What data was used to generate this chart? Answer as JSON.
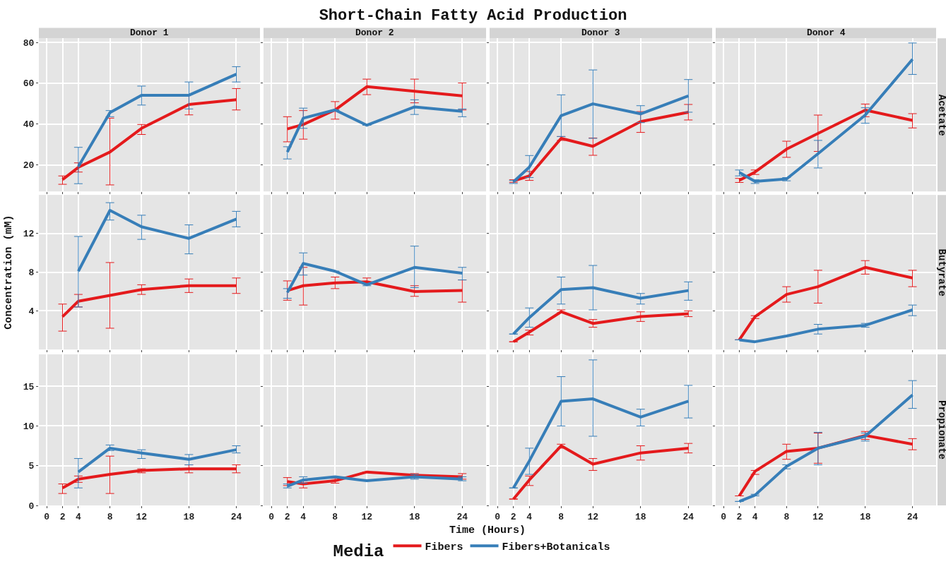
{
  "chart_data": [
    {
      "type": "line",
      "subtitle": "Donor 1",
      "legend": "bottom",
      "legend_title": "Media",
      "x": [
        2,
        4,
        8,
        12,
        18,
        24
      ],
      "xlim": [
        -1,
        27
      ],
      "xticks": [
        0,
        2,
        4,
        8,
        12,
        18,
        24
      ],
      "ylim": [
        7,
        82
      ],
      "yticks": [
        20,
        40,
        60,
        80
      ],
      "grid": true,
      "tick_labels": "y",
      "series": [
        {
          "name": "Fibers",
          "color": "#e41a1c",
          "values": [
            12.8,
            18.8,
            26.3,
            37.9,
            49.6,
            51.9
          ],
          "errors": [
            [
              10.5,
              14.6
            ],
            [
              16.5,
              21.0
            ],
            [
              10.2,
              42.9
            ],
            [
              34.9,
              39.8
            ],
            [
              44.5,
              54.6
            ],
            [
              46.9,
              57.4
            ]
          ]
        },
        {
          "name": "Fibers+Botanicals",
          "color": "#377eb8",
          "values": [
            null,
            19.2,
            45.6,
            54.1,
            54.1,
            64.4
          ],
          "errors": [
            null,
            [
              10.8,
              28.6
            ],
            [
              43.6,
              46.6
            ],
            [
              49.3,
              58.6
            ],
            [
              47.4,
              60.6
            ],
            [
              60.6,
              68.1
            ]
          ]
        }
      ]
    },
    {
      "type": "line",
      "title": "Short-Chain Fatty Acid Production",
      "subtitle": "Donor 2",
      "x": [
        2,
        4,
        8,
        12,
        18,
        24
      ],
      "xlim": [
        -1,
        27
      ],
      "xticks": [
        0,
        2,
        4,
        8,
        12,
        18,
        24
      ],
      "ylim": [
        7,
        82
      ],
      "yticks": [
        20,
        40,
        60,
        80
      ],
      "grid": true,
      "tick_labels": false,
      "series": [
        {
          "color": "#e41a1c",
          "values": [
            37.6,
            39.8,
            46.9,
            58.3,
            56.1,
            53.8
          ],
          "errors": [
            [
              31.3,
              43.6
            ],
            [
              32.6,
              46.6
            ],
            [
              42.4,
              51.0
            ],
            [
              54.4,
              62.0
            ],
            [
              50.4,
              62.0
            ],
            [
              46.9,
              60.1
            ]
          ]
        },
        {
          "color": "#377eb8",
          "values": [
            26.3,
            42.9,
            46.9,
            39.4,
            48.4,
            46.2
          ],
          "errors": [
            [
              22.9,
              28.9
            ],
            [
              37.9,
              47.8
            ],
            null,
            null,
            [
              44.7,
              51.9
            ],
            [
              43.6,
              47.4
            ]
          ]
        }
      ]
    },
    {
      "type": "line",
      "subtitle": "Donor 3",
      "x": [
        2,
        4,
        8,
        12,
        18,
        24
      ],
      "xlim": [
        -1,
        27
      ],
      "xticks": [
        0,
        2,
        4,
        8,
        12,
        18,
        24
      ],
      "ylim": [
        7,
        82
      ],
      "yticks": [
        20,
        40,
        60,
        80
      ],
      "grid": true,
      "tick_labels": false,
      "series": [
        {
          "color": "#e41a1c",
          "values": [
            12.1,
            14.6,
            33.0,
            29.1,
            41.2,
            45.8
          ],
          "errors": [
            [
              11.5,
              12.7
            ],
            [
              12.4,
              16.8
            ],
            [
              32.0,
              33.9
            ],
            [
              24.7,
              33.2
            ],
            [
              35.9,
              46.1
            ],
            [
              42.0,
              49.6
            ]
          ]
        },
        {
          "color": "#377eb8",
          "values": [
            11.7,
            18.9,
            44.1,
            49.9,
            45.0,
            53.8
          ],
          "errors": [
            [
              10.9,
              12.4
            ],
            [
              13.8,
              24.6
            ],
            [
              33.9,
              54.3
            ],
            [
              33.0,
              66.5
            ],
            [
              40.7,
              49.0
            ],
            [
              45.8,
              61.8
            ]
          ]
        }
      ]
    },
    {
      "type": "line",
      "subtitle": "Donor 4",
      "annotations": [
        "Acetate"
      ],
      "x": [
        2,
        4,
        8,
        12,
        18,
        24
      ],
      "xlim": [
        -1,
        27
      ],
      "xticks": [
        0,
        2,
        4,
        8,
        12,
        18,
        24
      ],
      "ylim": [
        7,
        82
      ],
      "yticks": [
        20,
        40,
        60,
        80
      ],
      "grid": true,
      "tick_labels": false,
      "series": [
        {
          "color": "#e41a1c",
          "values": [
            12.4,
            16.5,
            27.7,
            35.4,
            46.8,
            41.8
          ],
          "errors": [
            [
              11.4,
              13.4
            ],
            [
              15.3,
              17.5
            ],
            [
              23.7,
              31.6
            ],
            [
              26.6,
              44.4
            ],
            [
              43.6,
              49.8
            ],
            [
              38.1,
              45.1
            ]
          ]
        },
        {
          "color": "#377eb8",
          "values": [
            16.3,
            11.9,
            13.1,
            25.5,
            44.4,
            71.7
          ],
          "errors": [
            [
              14.6,
              17.5
            ],
            [
              10.9,
              12.7
            ],
            [
              12.2,
              13.8
            ],
            [
              18.5,
              32.0
            ],
            [
              40.4,
              48.0
            ],
            [
              64.3,
              79.7
            ]
          ]
        }
      ]
    },
    {
      "type": "line",
      "ylabel": "Concentration (mM)",
      "x": [
        2,
        4,
        8,
        12,
        18,
        24
      ],
      "xlim": [
        -1,
        27
      ],
      "xticks": [
        0,
        2,
        4,
        8,
        12,
        18,
        24
      ],
      "ylim": [
        0,
        16
      ],
      "yticks": [
        4,
        8,
        12
      ],
      "grid": true,
      "tick_labels": "y",
      "series": [
        {
          "color": "#e41a1c",
          "values": [
            3.4,
            5.0,
            5.6,
            6.2,
            6.6,
            6.6
          ],
          "errors": [
            [
              1.9,
              4.7
            ],
            [
              4.4,
              5.7
            ],
            [
              2.2,
              9.0
            ],
            [
              5.7,
              6.7
            ],
            [
              5.9,
              7.3
            ],
            [
              5.8,
              7.4
            ]
          ]
        },
        {
          "color": "#377eb8",
          "values": [
            null,
            8.1,
            14.4,
            12.7,
            11.5,
            13.5
          ],
          "errors": [
            null,
            [
              4.4,
              11.7
            ],
            [
              13.4,
              15.2
            ],
            [
              11.4,
              13.9
            ],
            [
              9.9,
              12.9
            ],
            [
              12.7,
              14.3
            ]
          ]
        }
      ]
    },
    {
      "type": "line",
      "x": [
        2,
        4,
        8,
        12,
        18,
        24
      ],
      "xlim": [
        -1,
        27
      ],
      "xticks": [
        0,
        2,
        4,
        8,
        12,
        18,
        24
      ],
      "ylim": [
        0,
        16
      ],
      "yticks": [
        4,
        8,
        12
      ],
      "grid": true,
      "tick_labels": false,
      "series": [
        {
          "color": "#e41a1c",
          "values": [
            6.1,
            6.6,
            6.9,
            7.0,
            6.0,
            6.1
          ],
          "errors": [
            [
              5.1,
              7.1
            ],
            [
              4.6,
              8.5
            ],
            [
              6.3,
              7.5
            ],
            [
              6.8,
              7.4
            ],
            [
              5.5,
              6.6
            ],
            [
              4.9,
              7.2
            ]
          ]
        },
        {
          "color": "#377eb8",
          "values": [
            5.9,
            8.9,
            8.1,
            6.7,
            8.5,
            7.9
          ],
          "errors": [
            [
              5.3,
              6.3
            ],
            [
              7.7,
              10.0
            ],
            null,
            [
              6.6,
              6.8
            ],
            [
              6.4,
              10.7
            ],
            [
              7.2,
              8.5
            ]
          ]
        }
      ]
    },
    {
      "type": "line",
      "x": [
        2,
        4,
        8,
        12,
        18,
        24
      ],
      "xlim": [
        -1,
        27
      ],
      "xticks": [
        0,
        2,
        4,
        8,
        12,
        18,
        24
      ],
      "ylim": [
        0,
        16
      ],
      "yticks": [
        4,
        8,
        12
      ],
      "grid": true,
      "tick_labels": false,
      "series": [
        {
          "color": "#e41a1c",
          "values": [
            0.8,
            1.8,
            3.9,
            2.7,
            3.4,
            3.7
          ],
          "errors": [
            null,
            [
              1.5,
              2.0
            ],
            [
              3.8,
              4.1
            ],
            [
              2.3,
              3.1
            ],
            [
              2.9,
              3.9
            ],
            [
              3.4,
              4.0
            ]
          ]
        },
        {
          "color": "#377eb8",
          "values": [
            1.6,
            3.3,
            6.2,
            6.4,
            5.3,
            6.1
          ],
          "errors": [
            null,
            [
              2.3,
              4.3
            ],
            [
              4.7,
              7.5
            ],
            [
              4.1,
              8.7
            ],
            [
              4.7,
              5.8
            ],
            [
              5.1,
              7.0
            ]
          ]
        }
      ]
    },
    {
      "type": "line",
      "annotations": [
        "Butyrate"
      ],
      "x": [
        2,
        4,
        8,
        12,
        18,
        24
      ],
      "xlim": [
        -1,
        27
      ],
      "xticks": [
        0,
        2,
        4,
        8,
        12,
        18,
        24
      ],
      "ylim": [
        0,
        16
      ],
      "yticks": [
        4,
        8,
        12
      ],
      "grid": true,
      "tick_labels": false,
      "series": [
        {
          "color": "#e41a1c",
          "values": [
            1.0,
            3.4,
            5.7,
            6.5,
            8.5,
            7.4
          ],
          "errors": [
            null,
            [
              3.2,
              3.5
            ],
            [
              4.9,
              6.5
            ],
            [
              4.8,
              8.2
            ],
            [
              7.8,
              9.2
            ],
            [
              6.5,
              8.2
            ]
          ]
        },
        {
          "color": "#377eb8",
          "values": [
            1.0,
            0.8,
            1.4,
            2.1,
            2.5,
            4.1
          ],
          "errors": [
            null,
            null,
            null,
            [
              1.6,
              2.6
            ],
            [
              2.3,
              2.7
            ],
            [
              3.5,
              4.6
            ]
          ]
        }
      ]
    },
    {
      "type": "line",
      "x": [
        2,
        4,
        8,
        12,
        18,
        24
      ],
      "xlim": [
        -1,
        27
      ],
      "xticks": [
        0,
        2,
        4,
        8,
        12,
        18,
        24
      ],
      "ylim": [
        0,
        19
      ],
      "yticks": [
        0,
        5,
        10,
        15
      ],
      "grid": true,
      "series": [
        {
          "color": "#e41a1c",
          "values": [
            2.2,
            3.3,
            3.9,
            4.4,
            4.6,
            4.6
          ],
          "errors": [
            [
              1.5,
              2.7
            ],
            [
              2.9,
              3.7
            ],
            [
              1.5,
              6.2
            ],
            [
              4.1,
              4.6
            ],
            [
              4.1,
              5.1
            ],
            [
              4.1,
              5.1
            ]
          ]
        },
        {
          "color": "#377eb8",
          "values": [
            null,
            4.2,
            7.2,
            6.6,
            5.8,
            7.0
          ],
          "errors": [
            null,
            [
              2.2,
              5.9
            ],
            [
              6.9,
              7.6
            ],
            [
              5.9,
              7.0
            ],
            [
              5.1,
              6.4
            ],
            [
              6.6,
              7.5
            ]
          ]
        }
      ]
    },
    {
      "type": "line",
      "xlabel": "Time (Hours)",
      "x": [
        2,
        4,
        8,
        12,
        18,
        24
      ],
      "xlim": [
        -1,
        27
      ],
      "xticks": [
        0,
        2,
        4,
        8,
        12,
        18,
        24
      ],
      "ylim": [
        0,
        19
      ],
      "yticks": [
        0,
        5,
        10,
        15
      ],
      "grid": true,
      "tick_labels": "x",
      "series": [
        {
          "color": "#e41a1c",
          "values": [
            3.0,
            2.7,
            3.1,
            4.2,
            3.8,
            3.6
          ],
          "errors": [
            [
              2.5,
              3.5
            ],
            [
              2.2,
              3.1
            ],
            [
              2.8,
              3.4
            ],
            null,
            [
              3.5,
              4.0
            ],
            [
              3.3,
              4.0
            ]
          ]
        },
        {
          "color": "#377eb8",
          "values": [
            2.4,
            3.2,
            3.6,
            3.1,
            3.6,
            3.3
          ],
          "errors": [
            [
              2.2,
              2.7
            ],
            [
              2.8,
              3.6
            ],
            null,
            null,
            [
              3.3,
              3.9
            ],
            [
              3.1,
              3.6
            ]
          ]
        }
      ]
    },
    {
      "type": "line",
      "x": [
        2,
        4,
        8,
        12,
        18,
        24
      ],
      "xlim": [
        -1,
        27
      ],
      "xticks": [
        0,
        2,
        4,
        8,
        12,
        18,
        24
      ],
      "ylim": [
        0,
        19
      ],
      "yticks": [
        0,
        5,
        10,
        15
      ],
      "grid": true,
      "tick_labels": "x",
      "series": [
        {
          "color": "#e41a1c",
          "values": [
            0.8,
            3.2,
            7.5,
            5.2,
            6.6,
            7.2
          ],
          "errors": [
            null,
            [
              2.5,
              3.7
            ],
            [
              7.2,
              7.7
            ],
            [
              4.4,
              5.9
            ],
            [
              5.7,
              7.5
            ],
            [
              6.6,
              7.8
            ]
          ]
        },
        {
          "color": "#377eb8",
          "values": [
            2.2,
            5.6,
            13.1,
            13.4,
            11.1,
            13.1
          ],
          "errors": [
            null,
            [
              3.9,
              7.2
            ],
            [
              10.0,
              16.2
            ],
            [
              8.7,
              18.3
            ],
            [
              10.0,
              12.1
            ],
            [
              11.0,
              15.1
            ]
          ]
        }
      ]
    },
    {
      "type": "line",
      "annotations": [
        "Propionate"
      ],
      "x": [
        2,
        4,
        8,
        12,
        18,
        24
      ],
      "xlim": [
        -1,
        27
      ],
      "xticks": [
        0,
        2,
        4,
        8,
        12,
        18,
        24
      ],
      "ylim": [
        0,
        19
      ],
      "yticks": [
        0,
        5,
        10,
        15
      ],
      "grid": true,
      "tick_labels": "x",
      "series": [
        {
          "color": "#e41a1c",
          "values": [
            1.2,
            4.3,
            6.8,
            7.2,
            8.8,
            7.7
          ],
          "errors": [
            null,
            [
              3.9,
              4.4
            ],
            [
              5.8,
              7.7
            ],
            [
              5.3,
              9.1
            ],
            [
              8.3,
              9.3
            ],
            [
              7.0,
              8.4
            ]
          ]
        },
        {
          "color": "#377eb8",
          "values": [
            0.5,
            1.3,
            4.9,
            7.2,
            8.7,
            13.9
          ],
          "errors": [
            null,
            [
              1.2,
              1.4
            ],
            [
              4.6,
              5.1
            ],
            [
              5.1,
              9.2
            ],
            [
              8.1,
              9.1
            ],
            [
              12.2,
              15.7
            ]
          ]
        }
      ]
    }
  ]
}
